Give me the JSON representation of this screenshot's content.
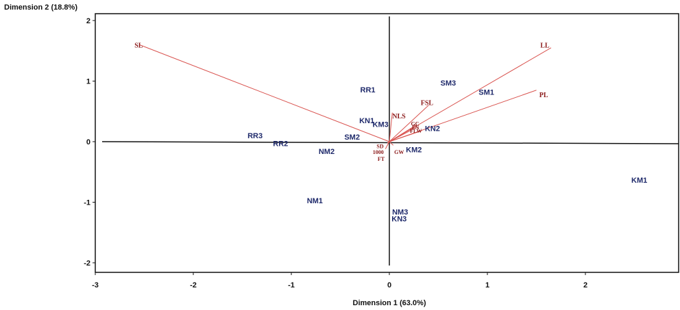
{
  "chart_data": {
    "type": "scatter",
    "subtype": "biplot",
    "xlabel": "Dimension 1  (63.0%)",
    "ylabel": "Dimension 2  (18.8%)",
    "xlim": [
      -3.0,
      3.0
    ],
    "ylim": [
      -2.1,
      2.1
    ],
    "x_ticks": [
      -3,
      -2,
      -1,
      0,
      1,
      2
    ],
    "y_ticks": [
      -2,
      -1,
      0,
      1,
      2
    ],
    "grid": false,
    "colors": {
      "observations": "#1f2a6b",
      "variables": "#8b1a1a",
      "vectors": "#d9534f",
      "axes": "#111111"
    },
    "observations": [
      {
        "label": "KM1",
        "x": 2.55,
        "y": -0.63
      },
      {
        "label": "KM2",
        "x": 0.25,
        "y": -0.13
      },
      {
        "label": "KM3",
        "x": -0.09,
        "y": 0.29
      },
      {
        "label": "KN1",
        "x": -0.23,
        "y": 0.35
      },
      {
        "label": "KN2",
        "x": 0.44,
        "y": 0.22
      },
      {
        "label": "KN3",
        "x": 0.1,
        "y": -1.27
      },
      {
        "label": "NM1",
        "x": -0.76,
        "y": -0.97
      },
      {
        "label": "NM2",
        "x": -0.64,
        "y": -0.16
      },
      {
        "label": "NM3",
        "x": 0.11,
        "y": -1.16
      },
      {
        "label": "RR1",
        "x": -0.22,
        "y": 0.86
      },
      {
        "label": "RR2",
        "x": -1.11,
        "y": -0.03
      },
      {
        "label": "RR3",
        "x": -1.37,
        "y": 0.1
      },
      {
        "label": "SM1",
        "x": 0.99,
        "y": 0.82
      },
      {
        "label": "SM2",
        "x": -0.38,
        "y": 0.08
      },
      {
        "label": "SM3",
        "x": 0.6,
        "y": 0.97
      }
    ],
    "variables": [
      {
        "label": "SL",
        "x": -2.55,
        "y": 1.6,
        "lx": -2.6,
        "ly": 1.6
      },
      {
        "label": "LL",
        "x": 1.65,
        "y": 1.55,
        "lx": 1.54,
        "ly": 1.6
      },
      {
        "label": "PL",
        "x": 1.5,
        "y": 0.85,
        "lx": 1.53,
        "ly": 0.78
      },
      {
        "label": "FSL",
        "x": 0.4,
        "y": 0.6,
        "lx": 0.32,
        "ly": 0.65
      },
      {
        "label": "NLS",
        "x": 0.03,
        "y": 0.48,
        "lx": 0.03,
        "ly": 0.43
      },
      {
        "label": "GC",
        "x": 0.28,
        "y": 0.28,
        "lx": 0.22,
        "ly": 0.31
      },
      {
        "label": "FN",
        "x": 0.28,
        "y": 0.24,
        "lx": 0.23,
        "ly": 0.25
      },
      {
        "label": "FLW",
        "x": 0.33,
        "y": 0.18,
        "lx": 0.21,
        "ly": 0.19
      },
      {
        "label": "SD",
        "x": -0.02,
        "y": -0.02,
        "lx": -0.13,
        "ly": -0.06
      },
      {
        "label": "1000",
        "x": -0.02,
        "y": -0.06,
        "lx": -0.17,
        "ly": -0.16
      },
      {
        "label": "GW",
        "x": 0.04,
        "y": -0.06,
        "lx": 0.05,
        "ly": -0.16
      },
      {
        "label": "FT",
        "x": -0.04,
        "y": -0.12,
        "lx": -0.12,
        "ly": -0.27
      }
    ]
  }
}
